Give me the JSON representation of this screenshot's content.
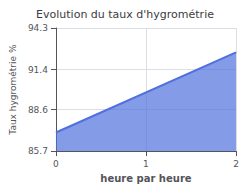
{
  "chart_data": {
    "type": "area",
    "title": "Evolution du taux d'hygrométrie",
    "xlabel": "heure par heure",
    "ylabel": "Taux hygrométrie %",
    "x": [
      0,
      2
    ],
    "values": [
      87.0,
      92.6
    ],
    "xlim": [
      0,
      2
    ],
    "ylim": [
      85.7,
      94.3
    ],
    "xticks": [
      0,
      1,
      2
    ],
    "yticks": [
      85.7,
      88.6,
      91.4,
      94.3
    ],
    "grid": true
  }
}
